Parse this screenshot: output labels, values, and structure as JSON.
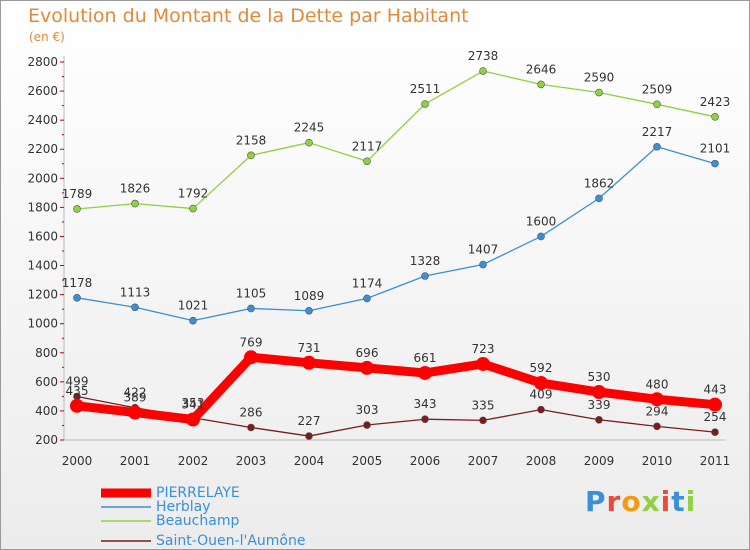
{
  "title": "Evolution du Montant de la Dette par Habitant",
  "unit": "(en €)",
  "brand": "Proxiti",
  "chart_data": {
    "type": "line",
    "title": "Evolution du Montant de la Dette par Habitant",
    "ylabel": "(en €)",
    "xlabel": "",
    "ylim": [
      200,
      2800
    ],
    "yticks": [
      200,
      400,
      600,
      800,
      1000,
      1200,
      1400,
      1600,
      1800,
      2000,
      2200,
      2400,
      2600,
      2800
    ],
    "grid": false,
    "categories": [
      "2000",
      "2001",
      "2002",
      "2003",
      "2004",
      "2005",
      "2006",
      "2007",
      "2008",
      "2009",
      "2010",
      "2011"
    ],
    "series": [
      {
        "name": "PIERRELAYE",
        "color": "#ff0000",
        "values": [
          435,
          389,
          341,
          769,
          731,
          696,
          661,
          723,
          592,
          530,
          480,
          443
        ]
      },
      {
        "name": "Herblay",
        "color": "#3a8fd6",
        "values": [
          1178,
          1113,
          1021,
          1105,
          1089,
          1174,
          1328,
          1407,
          1600,
          1862,
          2217,
          2101
        ]
      },
      {
        "name": "Beauchamp",
        "color": "#8fd13f",
        "values": [
          1789,
          1826,
          1792,
          2158,
          2245,
          2117,
          2511,
          2738,
          2646,
          2590,
          2509,
          2423
        ]
      },
      {
        "name": "Saint-Ouen-l'Aumône",
        "color": "#7a1c1c",
        "values": [
          499,
          422,
          353,
          286,
          227,
          303,
          343,
          335,
          409,
          339,
          294,
          254
        ]
      }
    ]
  }
}
